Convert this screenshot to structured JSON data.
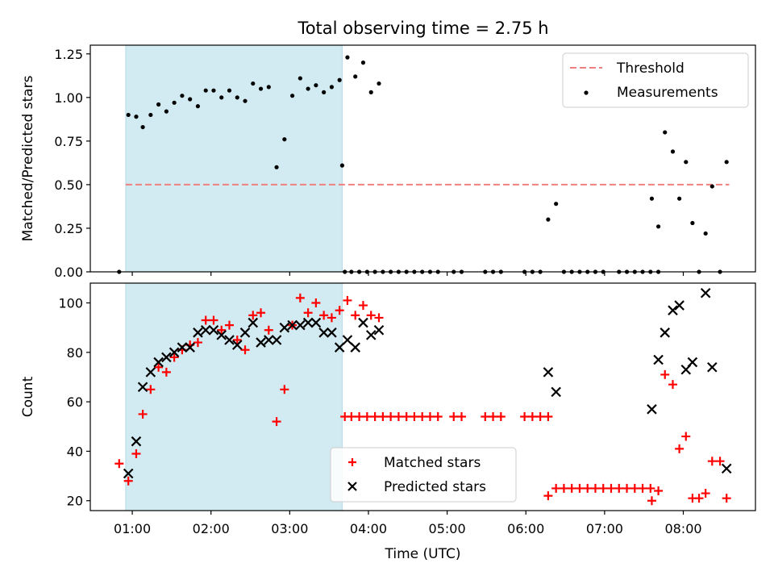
{
  "title": "Total observing time = 2.75 h",
  "colors": {
    "threshold": "#f08080",
    "shade": "#add8e6",
    "measurement": "#000000",
    "matched": "#ff0000",
    "predicted": "#000000"
  },
  "chart_data": [
    {
      "type": "scatter",
      "panel": "top",
      "title": "Total observing time = 2.75 h",
      "xlabel": "",
      "ylabel": "Matched/Predicted stars",
      "ylim": [
        0,
        1.3
      ],
      "yticks": [
        0.0,
        0.25,
        0.5,
        0.75,
        1.0,
        1.25
      ],
      "ytick_labels": [
        "0.00",
        "0.25",
        "0.50",
        "0.75",
        "1.00",
        "1.25"
      ],
      "xlim": [
        "00:28",
        "08:55"
      ],
      "shaded_span": [
        "00:55",
        "03:40"
      ],
      "threshold": {
        "name": "Threshold",
        "y": 0.5,
        "x": [
          "00:55",
          "08:35"
        ],
        "style": "dashed"
      },
      "legend": {
        "position": "top-right",
        "entries": [
          "Threshold",
          "Measurements"
        ]
      },
      "series": [
        {
          "name": "Measurements",
          "marker": "dot",
          "points": [
            [
              "00:50",
              0.0
            ],
            [
              "00:57",
              0.9
            ],
            [
              "01:03",
              0.89
            ],
            [
              "01:08",
              0.83
            ],
            [
              "01:14",
              0.9
            ],
            [
              "01:20",
              0.96
            ],
            [
              "01:26",
              0.92
            ],
            [
              "01:32",
              0.97
            ],
            [
              "01:38",
              1.01
            ],
            [
              "01:44",
              0.99
            ],
            [
              "01:50",
              0.95
            ],
            [
              "01:56",
              1.04
            ],
            [
              "02:02",
              1.04
            ],
            [
              "02:08",
              1.0
            ],
            [
              "02:14",
              1.04
            ],
            [
              "02:20",
              1.0
            ],
            [
              "02:26",
              0.98
            ],
            [
              "02:32",
              1.08
            ],
            [
              "02:38",
              1.05
            ],
            [
              "02:44",
              1.06
            ],
            [
              "02:50",
              0.6
            ],
            [
              "02:56",
              0.76
            ],
            [
              "03:02",
              1.01
            ],
            [
              "03:08",
              1.11
            ],
            [
              "03:14",
              1.05
            ],
            [
              "03:20",
              1.07
            ],
            [
              "03:26",
              1.03
            ],
            [
              "03:32",
              1.06
            ],
            [
              "03:38",
              1.1
            ],
            [
              "03:44",
              1.23
            ],
            [
              "03:50",
              1.12
            ],
            [
              "03:56",
              1.2
            ],
            [
              "04:02",
              1.03
            ],
            [
              "04:08",
              1.08
            ],
            [
              "03:40",
              0.61
            ],
            [
              "03:42",
              0.0
            ],
            [
              "03:47",
              0.0
            ],
            [
              "03:53",
              0.0
            ],
            [
              "03:59",
              0.0
            ],
            [
              "04:05",
              0.0
            ],
            [
              "04:11",
              0.0
            ],
            [
              "04:17",
              0.0
            ],
            [
              "04:23",
              0.0
            ],
            [
              "04:29",
              0.0
            ],
            [
              "04:35",
              0.0
            ],
            [
              "04:41",
              0.0
            ],
            [
              "04:47",
              0.0
            ],
            [
              "04:53",
              0.0
            ],
            [
              "05:05",
              0.0
            ],
            [
              "05:11",
              0.0
            ],
            [
              "05:29",
              0.0
            ],
            [
              "05:35",
              0.0
            ],
            [
              "05:41",
              0.0
            ],
            [
              "05:59",
              0.0
            ],
            [
              "06:05",
              0.0
            ],
            [
              "06:11",
              0.0
            ],
            [
              "06:17",
              0.3
            ],
            [
              "06:23",
              0.39
            ],
            [
              "06:29",
              0.0
            ],
            [
              "06:35",
              0.0
            ],
            [
              "06:41",
              0.0
            ],
            [
              "06:47",
              0.0
            ],
            [
              "06:53",
              0.0
            ],
            [
              "06:59",
              0.0
            ],
            [
              "07:11",
              0.0
            ],
            [
              "07:17",
              0.0
            ],
            [
              "07:23",
              0.0
            ],
            [
              "07:29",
              0.0
            ],
            [
              "07:35",
              0.0
            ],
            [
              "07:41",
              0.0
            ],
            [
              "07:36",
              0.42
            ],
            [
              "07:41",
              0.26
            ],
            [
              "07:46",
              0.8
            ],
            [
              "07:52",
              0.69
            ],
            [
              "07:57",
              0.42
            ],
            [
              "08:02",
              0.63
            ],
            [
              "08:07",
              0.28
            ],
            [
              "08:12",
              0.0
            ],
            [
              "08:17",
              0.22
            ],
            [
              "08:22",
              0.49
            ],
            [
              "08:28",
              0.0
            ],
            [
              "08:33",
              0.63
            ]
          ]
        }
      ]
    },
    {
      "type": "scatter",
      "panel": "bottom",
      "xlabel": "Time (UTC)",
      "ylabel": "Count",
      "ylim": [
        16,
        108
      ],
      "yticks": [
        20,
        40,
        60,
        80,
        100
      ],
      "ytick_labels": [
        "20",
        "40",
        "60",
        "80",
        "100"
      ],
      "xlim": [
        "00:28",
        "08:55"
      ],
      "xticks": [
        "01:00",
        "02:00",
        "03:00",
        "04:00",
        "05:00",
        "06:00",
        "07:00",
        "08:00"
      ],
      "shaded_span": [
        "00:55",
        "03:40"
      ],
      "legend": {
        "position": "lower-center",
        "entries": [
          "Matched stars",
          "Predicted stars"
        ]
      },
      "series": [
        {
          "name": "Matched stars",
          "marker": "plus",
          "points": [
            [
              "00:50",
              35
            ],
            [
              "00:57",
              28
            ],
            [
              "01:03",
              39
            ],
            [
              "01:08",
              55
            ],
            [
              "01:14",
              65
            ],
            [
              "01:20",
              74
            ],
            [
              "01:26",
              72
            ],
            [
              "01:32",
              78
            ],
            [
              "01:38",
              81
            ],
            [
              "01:44",
              83
            ],
            [
              "01:50",
              84
            ],
            [
              "01:56",
              93
            ],
            [
              "02:02",
              93
            ],
            [
              "02:08",
              89
            ],
            [
              "02:14",
              91
            ],
            [
              "02:20",
              85
            ],
            [
              "02:26",
              81
            ],
            [
              "02:32",
              95
            ],
            [
              "02:38",
              96
            ],
            [
              "02:44",
              89
            ],
            [
              "02:50",
              52
            ],
            [
              "02:56",
              65
            ],
            [
              "03:02",
              91
            ],
            [
              "03:08",
              102
            ],
            [
              "03:14",
              96
            ],
            [
              "03:20",
              100
            ],
            [
              "03:26",
              95
            ],
            [
              "03:32",
              94
            ],
            [
              "03:38",
              97
            ],
            [
              "03:44",
              101
            ],
            [
              "03:50",
              95
            ],
            [
              "03:56",
              99
            ],
            [
              "04:02",
              95
            ],
            [
              "04:08",
              94
            ],
            [
              "03:42",
              54
            ],
            [
              "03:47",
              54
            ],
            [
              "03:53",
              54
            ],
            [
              "03:59",
              54
            ],
            [
              "04:05",
              54
            ],
            [
              "04:11",
              54
            ],
            [
              "04:17",
              54
            ],
            [
              "04:23",
              54
            ],
            [
              "04:29",
              54
            ],
            [
              "04:35",
              54
            ],
            [
              "04:41",
              54
            ],
            [
              "04:47",
              54
            ],
            [
              "04:53",
              54
            ],
            [
              "05:05",
              54
            ],
            [
              "05:11",
              54
            ],
            [
              "05:29",
              54
            ],
            [
              "05:35",
              54
            ],
            [
              "05:41",
              54
            ],
            [
              "05:59",
              54
            ],
            [
              "06:05",
              54
            ],
            [
              "06:11",
              54
            ],
            [
              "06:17",
              54
            ],
            [
              "06:17",
              22
            ],
            [
              "06:23",
              25
            ],
            [
              "06:29",
              25
            ],
            [
              "06:35",
              25
            ],
            [
              "06:41",
              25
            ],
            [
              "06:47",
              25
            ],
            [
              "06:53",
              25
            ],
            [
              "06:59",
              25
            ],
            [
              "07:05",
              25
            ],
            [
              "07:11",
              25
            ],
            [
              "07:17",
              25
            ],
            [
              "07:23",
              25
            ],
            [
              "07:29",
              25
            ],
            [
              "07:35",
              25
            ],
            [
              "07:41",
              24
            ],
            [
              "07:36",
              20
            ],
            [
              "07:46",
              71
            ],
            [
              "07:52",
              67
            ],
            [
              "07:57",
              41
            ],
            [
              "08:02",
              46
            ],
            [
              "08:07",
              21
            ],
            [
              "08:12",
              21
            ],
            [
              "08:17",
              23
            ],
            [
              "08:22",
              36
            ],
            [
              "08:28",
              36
            ],
            [
              "08:33",
              21
            ]
          ]
        },
        {
          "name": "Predicted stars",
          "marker": "x",
          "points": [
            [
              "00:57",
              31
            ],
            [
              "01:03",
              44
            ],
            [
              "01:08",
              66
            ],
            [
              "01:14",
              72
            ],
            [
              "01:20",
              76
            ],
            [
              "01:26",
              78
            ],
            [
              "01:32",
              80
            ],
            [
              "01:38",
              82
            ],
            [
              "01:44",
              82
            ],
            [
              "01:50",
              88
            ],
            [
              "01:56",
              89
            ],
            [
              "02:02",
              89
            ],
            [
              "02:08",
              87
            ],
            [
              "02:14",
              85
            ],
            [
              "02:20",
              83
            ],
            [
              "02:26",
              88
            ],
            [
              "02:32",
              92
            ],
            [
              "02:38",
              84
            ],
            [
              "02:44",
              85
            ],
            [
              "02:50",
              85
            ],
            [
              "02:56",
              90
            ],
            [
              "03:02",
              91
            ],
            [
              "03:08",
              91
            ],
            [
              "03:14",
              92
            ],
            [
              "03:20",
              92
            ],
            [
              "03:26",
              88
            ],
            [
              "03:32",
              88
            ],
            [
              "03:38",
              82
            ],
            [
              "03:44",
              85
            ],
            [
              "03:50",
              82
            ],
            [
              "03:56",
              92
            ],
            [
              "04:02",
              87
            ],
            [
              "04:08",
              89
            ],
            [
              "06:17",
              72
            ],
            [
              "06:23",
              64
            ],
            [
              "07:36",
              57
            ],
            [
              "07:41",
              77
            ],
            [
              "07:46",
              88
            ],
            [
              "07:52",
              97
            ],
            [
              "07:57",
              99
            ],
            [
              "08:02",
              73
            ],
            [
              "08:07",
              76
            ],
            [
              "08:17",
              104
            ],
            [
              "08:22",
              74
            ],
            [
              "08:33",
              33
            ]
          ]
        }
      ]
    }
  ]
}
